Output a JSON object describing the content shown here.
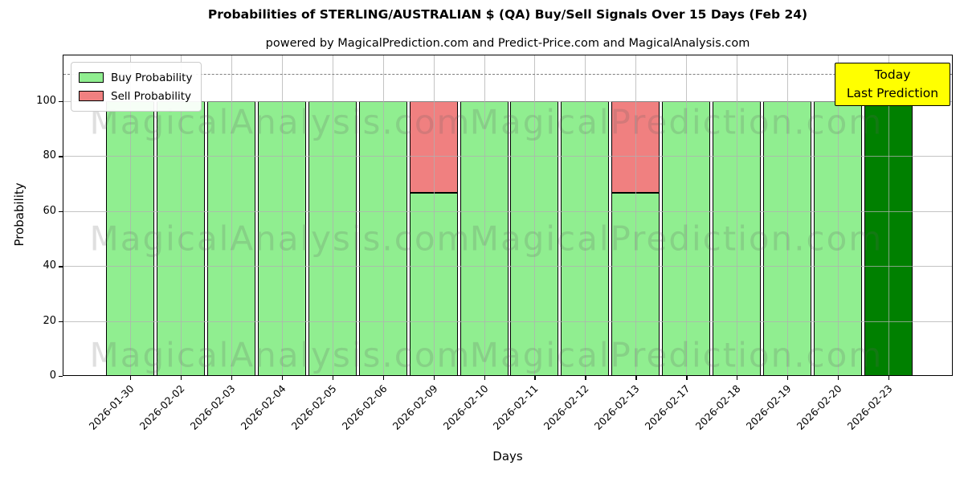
{
  "figure": {
    "title": "Probabilities of STERLING/AUSTRALIAN $ (QA) Buy/Sell Signals Over 15 Days (Feb 24)",
    "subtitle": "powered by MagicalPrediction.com and Predict-Price.com and MagicalAnalysis.com",
    "xlabel": "Days",
    "ylabel": "Probability"
  },
  "legend": {
    "items": [
      {
        "label": "Buy Probability",
        "color": "#90ee90"
      },
      {
        "label": "Sell Probability",
        "color": "#f08080"
      }
    ]
  },
  "annotation": {
    "lines": [
      "Today",
      "Last Prediction"
    ],
    "bg_color": "#ffff00"
  },
  "watermarks": {
    "left": "MagicalAnalysis.com",
    "right": "MagicalPrediction.com"
  },
  "chart_data": {
    "type": "bar",
    "stacked": true,
    "title": "Probabilities of STERLING/AUSTRALIAN $ (QA) Buy/Sell Signals Over 15 Days (Feb 24)",
    "xlabel": "Days",
    "ylabel": "Probability",
    "categories": [
      "2026-01-30",
      "2026-02-02",
      "2026-02-03",
      "2026-02-04",
      "2026-02-05",
      "2026-02-06",
      "2026-02-09",
      "2026-02-10",
      "2026-02-11",
      "2026-02-12",
      "2026-02-13",
      "2026-02-17",
      "2026-02-18",
      "2026-02-19",
      "2026-02-20",
      "2026-02-23"
    ],
    "series": [
      {
        "name": "Buy Probability",
        "color": "#90ee90",
        "values": [
          100,
          100,
          100,
          100,
          100,
          100,
          66.67,
          100,
          100,
          100,
          66.67,
          100,
          100,
          100,
          100,
          100
        ]
      },
      {
        "name": "Sell Probability",
        "color": "#f08080",
        "values": [
          0,
          0,
          0,
          0,
          0,
          0,
          33.33,
          0,
          0,
          0,
          33.33,
          0,
          0,
          0,
          0,
          0
        ]
      }
    ],
    "today_bar": {
      "category": "2026-02-23",
      "color": "#008000",
      "note": "Today / Last Prediction"
    },
    "yticks": [
      0,
      20,
      40,
      60,
      80,
      100
    ],
    "ylim": [
      0,
      117
    ],
    "dashed_guide_y": 110,
    "grid": true,
    "legend_position": "upper left",
    "x_tick_rotation": 45,
    "bar_edge_color": "#000000",
    "gridline_color": "#b0b0b0"
  }
}
